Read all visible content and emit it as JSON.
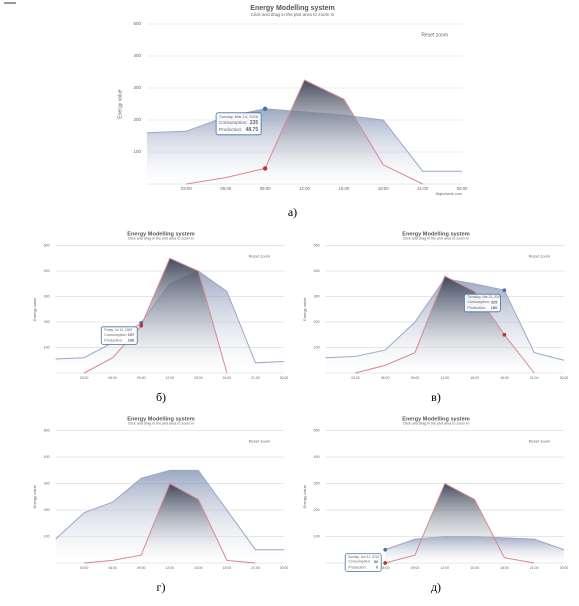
{
  "chart_data": [
    {
      "type": "area",
      "panel_label": "а)",
      "title": "Energy Modelling system",
      "subtitle": "Click and drag in the plot area to zoom in",
      "reset_button": "Reset zoom",
      "y_label": "Energy value",
      "credits": "Highcharts.com",
      "categories": [
        null,
        "03:00",
        "06:00",
        "09:00",
        "12:00",
        "15:00",
        "18:00",
        "21:00",
        "00:00"
      ],
      "series": [
        {
          "name": "Consumption",
          "color": "#9aa7c7",
          "values": [
            160,
            165,
            210,
            235,
            225,
            215,
            200,
            40,
            40
          ]
        },
        {
          "name": "Production",
          "color": "#d9898f",
          "values": [
            null,
            0,
            20,
            48.75,
            325,
            265,
            60,
            0,
            null
          ]
        }
      ],
      "ylim": [
        0,
        500
      ],
      "yticks": [
        100,
        200,
        300,
        400,
        500
      ],
      "grid": true,
      "tooltip": {
        "date": "Sunday, Mar 14, 2016",
        "rows": [
          {
            "label": "Consumption:",
            "value": 235
          },
          {
            "label": "Production:",
            "value": 48.75
          }
        ]
      }
    },
    {
      "type": "area",
      "panel_label": "б)",
      "title": "Energy Modelling system",
      "subtitle": "Click and drag in the plot area to zoom in",
      "reset_button": "Reset zoom",
      "y_label": "Energy value",
      "categories": [
        null,
        "03:00",
        "06:00",
        "09:00",
        "12:00",
        "15:00",
        "18:00",
        "21:00",
        "00:00"
      ],
      "series": [
        {
          "name": "Consumption",
          "color": "#9aa7c7",
          "values": [
            55,
            60,
            120,
            197,
            350,
            400,
            320,
            40,
            45
          ]
        },
        {
          "name": "Production",
          "color": "#d9898f",
          "values": [
            null,
            0,
            60,
            186,
            450,
            400,
            0,
            null,
            null
          ]
        }
      ],
      "ylim": [
        0,
        500
      ],
      "yticks": [
        100,
        200,
        300,
        400,
        500
      ],
      "grid": true,
      "tooltip": {
        "date": "Friday, Jul 10, 2009",
        "rows": [
          {
            "label": "Consumption:",
            "value": 197
          },
          {
            "label": "Production:",
            "value": 186
          }
        ]
      }
    },
    {
      "type": "area",
      "panel_label": "в)",
      "title": "Energy Modelling system",
      "subtitle": "Click and drag in the plot area to zoom in",
      "reset_button": "Reset zoom",
      "y_label": "Energy value",
      "categories": [
        null,
        "03:00",
        "06:00",
        "09:00",
        "12:00",
        "15:00",
        "18:00",
        "21:00",
        "00:00"
      ],
      "series": [
        {
          "name": "Consumption",
          "color": "#9aa7c7",
          "values": [
            60,
            65,
            90,
            200,
            370,
            350,
            325,
            80,
            50
          ]
        },
        {
          "name": "Production",
          "color": "#d9898f",
          "values": [
            null,
            0,
            30,
            80,
            380,
            320,
            150,
            0,
            null
          ]
        }
      ],
      "ylim": [
        0,
        500
      ],
      "yticks": [
        100,
        200,
        300,
        400,
        500
      ],
      "grid": true,
      "tooltip": {
        "date": "Thursday, Mar 24, 2009",
        "rows": [
          {
            "label": "Consumption:",
            "value": 325
          },
          {
            "label": "Production:",
            "value": 150
          }
        ]
      }
    },
    {
      "type": "area",
      "panel_label": "г)",
      "title": "Energy Modelling system",
      "subtitle": "Click and drag in the plot area to zoom in",
      "reset_button": "Reset zoom",
      "y_label": "Energy value",
      "categories": [
        null,
        "03:00",
        "06:00",
        "09:00",
        "12:00",
        "15:00",
        "18:00",
        "21:00",
        "00:00"
      ],
      "series": [
        {
          "name": "Consumption",
          "color": "#9aa7c7",
          "values": [
            90,
            190,
            230,
            320,
            350,
            350,
            200,
            50,
            50
          ]
        },
        {
          "name": "Production",
          "color": "#d9898f",
          "values": [
            null,
            0,
            10,
            30,
            300,
            240,
            10,
            0,
            null
          ]
        }
      ],
      "ylim": [
        0,
        500
      ],
      "yticks": [
        100,
        200,
        300,
        400,
        500
      ],
      "grid": true
    },
    {
      "type": "area",
      "panel_label": "д)",
      "title": "Energy Modelling system",
      "subtitle": "Click and drag in the plot area to zoom in",
      "reset_button": "Reset zoom",
      "y_label": "Energy value",
      "categories": [
        null,
        "03:00",
        "06:00",
        "09:00",
        "12:00",
        "15:00",
        "18:00",
        "21:00",
        "00:00"
      ],
      "series": [
        {
          "name": "Consumption",
          "color": "#9aa7c7",
          "values": [
            null,
            null,
            50,
            90,
            100,
            100,
            95,
            90,
            50
          ]
        },
        {
          "name": "Production",
          "color": "#d9898f",
          "values": [
            null,
            null,
            0,
            30,
            300,
            240,
            20,
            0,
            null
          ]
        }
      ],
      "ylim": [
        0,
        500
      ],
      "yticks": [
        100,
        200,
        300,
        400,
        500
      ],
      "grid": true,
      "tooltip": {
        "date": "Sunday, Jan 31, 2016",
        "rows": [
          {
            "label": "Consumption:",
            "value": 50
          },
          {
            "label": "Production:",
            "value": 0
          }
        ]
      }
    }
  ]
}
